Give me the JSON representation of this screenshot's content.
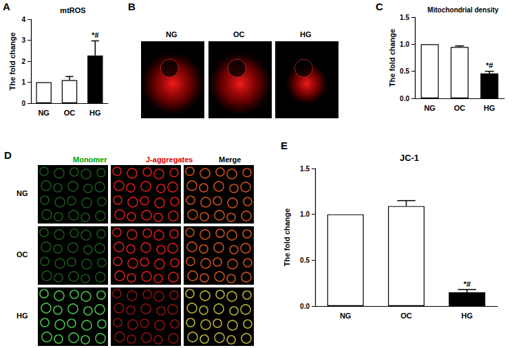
{
  "chart_data": [
    {
      "type": "bar",
      "panel": "A",
      "title": "mtROS",
      "y_label": "The fold change",
      "categories": [
        "NG",
        "OC",
        "HG"
      ],
      "values": [
        1.0,
        1.1,
        2.27
      ],
      "errors": [
        0,
        0.17,
        0.7
      ],
      "colors": [
        "#ffffff",
        "#ffffff",
        "#000000"
      ],
      "ylim": [
        0,
        4
      ],
      "yticks": [
        0,
        1,
        2,
        3,
        4
      ],
      "grid": false,
      "annotations": [
        {
          "category": "HG",
          "text": "*#"
        }
      ]
    },
    {
      "type": "bar",
      "panel": "C",
      "title": "Mitochondrial density",
      "y_label": "The fold change",
      "categories": [
        "NG",
        "OC",
        "HG"
      ],
      "values": [
        1.0,
        0.95,
        0.46
      ],
      "errors": [
        0,
        0.02,
        0.04
      ],
      "colors": [
        "#ffffff",
        "#ffffff",
        "#000000"
      ],
      "ylim": [
        0,
        1.5
      ],
      "yticks": [
        {
          "value": 0,
          "label": "0.0"
        },
        {
          "value": 0.5,
          "label": "0.5"
        },
        {
          "value": 1,
          "label": "1.0"
        },
        {
          "value": 1.5,
          "label": "1.5"
        }
      ],
      "grid": false,
      "annotations": [
        {
          "category": "HG",
          "text": "*#"
        }
      ]
    },
    {
      "type": "bar",
      "panel": "E",
      "title": "JC-1",
      "y_label": "The fold change",
      "categories": [
        "NG",
        "OC",
        "HG"
      ],
      "values": [
        1.0,
        1.09,
        0.15
      ],
      "errors": [
        0,
        0.06,
        0.03
      ],
      "colors": [
        "#ffffff",
        "#ffffff",
        "#000000"
      ],
      "ylim": [
        0,
        1.5
      ],
      "yticks": [
        {
          "value": 0,
          "label": "0.0"
        },
        {
          "value": 0.5,
          "label": "0.5"
        },
        {
          "value": 1,
          "label": "1.0"
        },
        {
          "value": 1.5,
          "label": "1.5"
        }
      ],
      "grid": false,
      "annotations": [
        {
          "category": "HG",
          "text": "*#"
        }
      ]
    }
  ],
  "image_panels": [
    {
      "panel": "B",
      "columns": [
        "NG",
        "OC",
        "HG"
      ]
    },
    {
      "panel": "D",
      "columns": [
        "Monomer",
        "J-aggregates",
        "Merge"
      ],
      "column_colors": [
        "#00a000",
        "#e00000",
        "#000000"
      ],
      "rows": [
        "NG",
        "OC",
        "HG"
      ]
    }
  ]
}
